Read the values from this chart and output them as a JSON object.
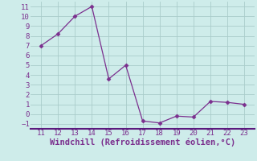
{
  "x": [
    11,
    12,
    13,
    14,
    15,
    16,
    17,
    18,
    19,
    20,
    21,
    22,
    23
  ],
  "y": [
    7.0,
    8.2,
    10.0,
    11.0,
    3.6,
    5.0,
    -0.7,
    -0.9,
    -0.2,
    -0.3,
    1.3,
    1.2,
    1.0
  ],
  "line_color": "#7b2f8e",
  "marker": "D",
  "marker_size": 2.5,
  "bg_color": "#ceecea",
  "grid_color": "#aaccca",
  "plot_bg_color": "#ceecea",
  "xlabel": "Windchill (Refroidissement éolien,°C)",
  "xlabel_color": "#7b2f8e",
  "xlabel_fontsize": 7.5,
  "tick_color": "#7b2f8e",
  "tick_fontsize": 6.5,
  "spine_color": "#5b1a7e",
  "ylim": [
    -1.5,
    11.5
  ],
  "xlim": [
    10.4,
    23.6
  ],
  "yticks": [
    -1,
    0,
    1,
    2,
    3,
    4,
    5,
    6,
    7,
    8,
    9,
    10,
    11
  ],
  "xticks": [
    11,
    12,
    13,
    14,
    15,
    16,
    17,
    18,
    19,
    20,
    21,
    22,
    23
  ]
}
